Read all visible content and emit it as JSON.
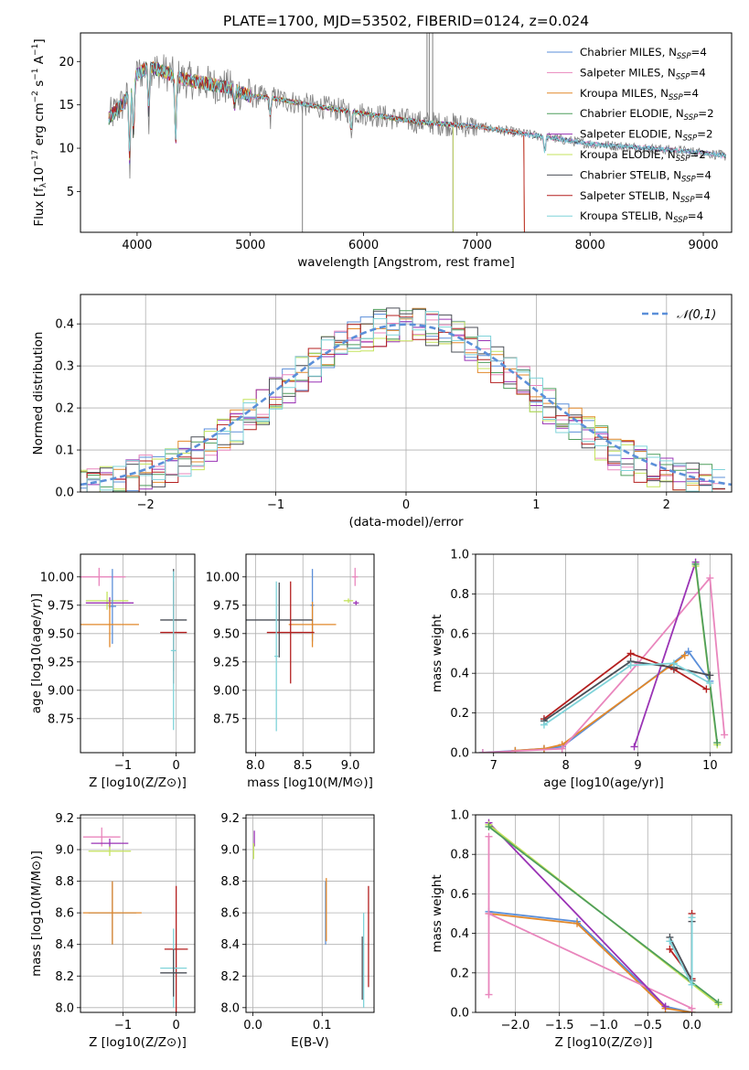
{
  "figure": {
    "title": "PLATE=1700, MJD=53502, FIBERID=0124, z=0.024"
  },
  "colors": {
    "chabrier_miles": "#5b8fd9",
    "salpeter_miles": "#e986bd",
    "kroupa_miles": "#e2882a",
    "chabrier_elodie": "#4f9e5c",
    "salpeter_elodie": "#9a33b5",
    "kroupa_elodie": "#c4e35c",
    "chabrier_stelib": "#4b4f57",
    "salpeter_stelib": "#b41f1f",
    "kroupa_stelib": "#7fd3d9",
    "data": "#808080",
    "normal_curve": "#5b8fd9"
  },
  "chart_data": [
    {
      "id": "spectrum",
      "type": "line",
      "xlabel": "wavelength [Angstrom, rest frame]",
      "ylabel": "Flux [f_λ 10^-17 erg cm^-2 s^-1 A^-1]",
      "xlim": [
        3500,
        9250
      ],
      "ylim": [
        0.3,
        23.3
      ],
      "xticks": [
        4000,
        5000,
        6000,
        7000,
        8000,
        9000
      ],
      "yticks": [
        5,
        10,
        15,
        20
      ],
      "grid": false,
      "legend_position": "top-right",
      "series": [
        {
          "name": "Chabrier MILES, N_SSP=4",
          "key": "chabrier_miles"
        },
        {
          "name": "Salpeter MILES, N_SSP=4",
          "key": "salpeter_miles"
        },
        {
          "name": "Kroupa MILES, N_SSP=4",
          "key": "kroupa_miles"
        },
        {
          "name": "Chabrier ELODIE, N_SSP=2",
          "key": "chabrier_elodie"
        },
        {
          "name": "Salpeter ELODIE, N_SSP=2",
          "key": "salpeter_elodie"
        },
        {
          "name": "Kroupa ELODIE, N_SSP=2",
          "key": "kroupa_elodie"
        },
        {
          "name": "Chabrier STELIB, N_SSP=4",
          "key": "chabrier_stelib"
        },
        {
          "name": "Salpeter STELIB, N_SSP=4",
          "key": "salpeter_stelib"
        },
        {
          "name": "Kroupa STELIB, N_SSP=4",
          "key": "kroupa_stelib"
        }
      ],
      "continuum": {
        "x": [
          3750,
          3900,
          4000,
          4100,
          4200,
          4400,
          4600,
          4800,
          5000,
          5200,
          5500,
          6000,
          6500,
          7000,
          7500,
          8000,
          8500,
          9000,
          9250
        ],
        "y": [
          13.5,
          15.5,
          18.5,
          19.5,
          19.0,
          18.0,
          17.5,
          17.0,
          16.0,
          15.8,
          15.0,
          14.0,
          13.0,
          12.5,
          11.5,
          10.5,
          10.0,
          9.5,
          9.0
        ]
      },
      "absorption_features": [
        {
          "x": 3934,
          "depth": 9.0
        },
        {
          "x": 3968,
          "depth": 7.0
        },
        {
          "x": 4102,
          "depth": 6.0
        },
        {
          "x": 4340,
          "depth": 8.5
        },
        {
          "x": 4861,
          "depth": 2.0
        },
        {
          "x": 5175,
          "depth": 2.5
        },
        {
          "x": 5890,
          "depth": 2.5
        },
        {
          "x": 7600,
          "depth": 2.0
        }
      ]
    },
    {
      "id": "residuals",
      "type": "line",
      "xlabel": "(data-model)/error",
      "ylabel": "Normed distribution",
      "xlim": [
        -2.5,
        2.5
      ],
      "ylim": [
        0.0,
        0.47
      ],
      "xticks": [
        -2,
        -1,
        0,
        1,
        2
      ],
      "yticks": [
        0.0,
        0.1,
        0.2,
        0.3,
        0.4
      ],
      "grid": true,
      "legend_position": "top-right",
      "legend_label": "𝒩(0,1)"
    },
    {
      "id": "age_vs_z",
      "type": "scatter",
      "xlabel": "Z [log10(Z/Z⊙)]",
      "ylabel": "age  [log10(age/yr)]",
      "xlim": [
        -1.8,
        0.35
      ],
      "ylim": [
        8.45,
        10.2
      ],
      "xticks": [
        -1,
        0
      ],
      "yticks": [
        8.75,
        9.0,
        9.25,
        9.5,
        9.75,
        10.0
      ],
      "grid": true,
      "points": [
        {
          "key": "salpeter_miles",
          "x": -1.45,
          "y": 10.0,
          "xerr": 0.5,
          "yerr": 0.08
        },
        {
          "key": "kroupa_elodie",
          "x": -1.3,
          "y": 9.79,
          "xerr": 0.4,
          "yerr": 0.08
        },
        {
          "key": "salpeter_elodie",
          "x": -1.25,
          "y": 9.77,
          "xerr": 0.45,
          "yerr": 0.05
        },
        {
          "key": "chabrier_miles",
          "x": -1.2,
          "y": 9.74,
          "xerr": 0.07,
          "yerr": 0.33
        },
        {
          "key": "kroupa_miles",
          "x": -1.25,
          "y": 9.58,
          "xerr": 0.55,
          "yerr": 0.2
        },
        {
          "key": "chabrier_stelib",
          "x": -0.05,
          "y": 9.62,
          "xerr": 0.25,
          "yerr": 0.45
        },
        {
          "key": "salpeter_stelib",
          "x": -0.05,
          "y": 9.51,
          "xerr": 0.25,
          "yerr": 0.45
        },
        {
          "key": "kroupa_stelib",
          "x": -0.05,
          "y": 9.35,
          "xerr": 0.05,
          "yerr": 0.7
        }
      ]
    },
    {
      "id": "age_vs_mass",
      "type": "scatter",
      "xlabel": "mass [log10(M/M⊙)]",
      "ylabel": "",
      "xlim": [
        7.9,
        9.25
      ],
      "ylim": [
        8.45,
        10.2
      ],
      "xticks": [
        8.0,
        8.5,
        9.0
      ],
      "yticks": [
        8.75,
        9.0,
        9.25,
        9.5,
        9.75,
        10.0
      ],
      "grid": true,
      "points": [
        {
          "key": "salpeter_miles",
          "x": 9.05,
          "y": 10.0,
          "xerr": 0.03,
          "yerr": 0.08
        },
        {
          "key": "kroupa_elodie",
          "x": 8.98,
          "y": 9.79,
          "xerr": 0.05,
          "yerr": 0.02
        },
        {
          "key": "salpeter_elodie",
          "x": 9.06,
          "y": 9.77,
          "xerr": 0.03,
          "yerr": 0.02
        },
        {
          "key": "chabrier_miles",
          "x": 8.6,
          "y": 9.75,
          "xerr": 0.02,
          "yerr": 0.32
        },
        {
          "key": "kroupa_miles",
          "x": 8.6,
          "y": 9.58,
          "xerr": 0.25,
          "yerr": 0.2
        },
        {
          "key": "chabrier_stelib",
          "x": 8.25,
          "y": 9.62,
          "xerr": 0.35,
          "yerr": 0.33
        },
        {
          "key": "salpeter_stelib",
          "x": 8.37,
          "y": 9.51,
          "xerr": 0.25,
          "yerr": 0.45
        },
        {
          "key": "kroupa_stelib",
          "x": 8.22,
          "y": 9.3,
          "xerr": 0.02,
          "yerr": 0.66
        }
      ]
    },
    {
      "id": "massweight_vs_age",
      "type": "line",
      "xlabel": "age  [log10(age/yr)]",
      "ylabel": "mass weight",
      "xlim": [
        6.75,
        10.3
      ],
      "ylim": [
        0.0,
        1.0
      ],
      "xticks": [
        7,
        8,
        9,
        10
      ],
      "yticks": [
        0.0,
        0.2,
        0.4,
        0.6,
        0.8,
        1.0
      ],
      "grid": true,
      "series": [
        {
          "key": "chabrier_miles",
          "x": [
            6.85,
            7.3,
            7.7,
            7.95,
            9.7,
            10.0
          ],
          "y": [
            0.0,
            0.01,
            0.02,
            0.03,
            0.51,
            0.36
          ]
        },
        {
          "key": "kroupa_miles",
          "x": [
            7.3,
            7.7,
            7.95,
            9.65
          ],
          "y": [
            0.01,
            0.02,
            0.04,
            0.49
          ]
        },
        {
          "key": "salpeter_miles",
          "x": [
            6.85,
            7.95,
            9.0,
            10.0,
            10.2
          ],
          "y": [
            0.0,
            0.02,
            0.45,
            0.88,
            0.09
          ]
        },
        {
          "key": "salpeter_elodie",
          "x": [
            8.95,
            9.8
          ],
          "y": [
            0.03,
            0.96
          ]
        },
        {
          "key": "kroupa_elodie",
          "x": [
            9.8,
            10.1
          ],
          "y": [
            0.94,
            0.04
          ]
        },
        {
          "key": "chabrier_elodie",
          "x": [
            9.8,
            10.1
          ],
          "y": [
            0.95,
            0.05
          ]
        },
        {
          "key": "salpeter_stelib",
          "x": [
            7.7,
            8.9,
            9.5,
            9.95
          ],
          "y": [
            0.17,
            0.5,
            0.42,
            0.32
          ]
        },
        {
          "key": "chabrier_stelib",
          "x": [
            7.7,
            8.9,
            9.5,
            10.0
          ],
          "y": [
            0.16,
            0.46,
            0.43,
            0.39
          ]
        },
        {
          "key": "kroupa_stelib",
          "x": [
            7.7,
            8.9,
            9.5,
            10.0
          ],
          "y": [
            0.14,
            0.44,
            0.45,
            0.35
          ]
        }
      ]
    },
    {
      "id": "mass_vs_z",
      "type": "scatter",
      "xlabel": "Z [log10(Z/Z⊙)]",
      "ylabel": "mass [log10(M/M⊙)]",
      "xlim": [
        -1.8,
        0.35
      ],
      "ylim": [
        7.97,
        9.22
      ],
      "xticks": [
        -1,
        0
      ],
      "yticks": [
        8.0,
        8.2,
        8.4,
        8.6,
        8.8,
        9.0,
        9.2
      ],
      "grid": true,
      "points": [
        {
          "key": "salpeter_miles",
          "x": -1.4,
          "y": 9.08,
          "xerr": 0.35,
          "yerr": 0.06
        },
        {
          "key": "salpeter_elodie",
          "x": -1.25,
          "y": 9.04,
          "xerr": 0.35,
          "yerr": 0.03
        },
        {
          "key": "kroupa_elodie",
          "x": -1.25,
          "y": 8.99,
          "xerr": 0.4,
          "yerr": 0.03
        },
        {
          "key": "chabrier_miles",
          "x": -1.2,
          "y": 8.6,
          "xerr": 0.45,
          "yerr": 0.2
        },
        {
          "key": "kroupa_miles",
          "x": -1.2,
          "y": 8.6,
          "xerr": 0.55,
          "yerr": 0.2
        },
        {
          "key": "salpeter_stelib",
          "x": 0.0,
          "y": 8.37,
          "xerr": 0.22,
          "yerr": 0.4
        },
        {
          "key": "kroupa_stelib",
          "x": -0.05,
          "y": 8.25,
          "xerr": 0.25,
          "yerr": 0.25
        },
        {
          "key": "chabrier_stelib",
          "x": -0.05,
          "y": 8.22,
          "xerr": 0.25,
          "yerr": 0.15
        }
      ]
    },
    {
      "id": "mass_vs_ebv",
      "type": "scatter",
      "xlabel": "E(B-V)",
      "ylabel": "",
      "xlim": [
        -0.01,
        0.175
      ],
      "ylim": [
        7.97,
        9.22
      ],
      "xticks": [
        0.0,
        0.1
      ],
      "yticks": [
        8.0,
        8.2,
        8.4,
        8.6,
        8.8,
        9.0,
        9.2
      ],
      "grid": true,
      "points": [
        {
          "key": "salpeter_elodie",
          "x": 0.002,
          "y": 9.07,
          "xerr": 0.0,
          "yerr": 0.05
        },
        {
          "key": "kroupa_elodie",
          "x": 0.001,
          "y": 8.99,
          "xerr": 0.0,
          "yerr": 0.05
        },
        {
          "key": "chabrier_miles",
          "x": 0.105,
          "y": 8.6,
          "xerr": 0.0,
          "yerr": 0.2
        },
        {
          "key": "kroupa_miles",
          "x": 0.106,
          "y": 8.62,
          "xerr": 0.0,
          "yerr": 0.2
        },
        {
          "key": "salpeter_stelib",
          "x": 0.167,
          "y": 8.45,
          "xerr": 0.0,
          "yerr": 0.32
        },
        {
          "key": "kroupa_stelib",
          "x": 0.16,
          "y": 8.3,
          "xerr": 0.0,
          "yerr": 0.3
        },
        {
          "key": "chabrier_stelib",
          "x": 0.158,
          "y": 8.25,
          "xerr": 0.0,
          "yerr": 0.2
        }
      ]
    },
    {
      "id": "massweight_vs_z",
      "type": "line",
      "xlabel": "Z [log10(Z/Z⊙)]",
      "ylabel": "mass weight",
      "xlim": [
        -2.45,
        0.45
      ],
      "ylim": [
        0.0,
        1.0
      ],
      "xticks": [
        -2.0,
        -1.5,
        -1.0,
        -0.5,
        0.0
      ],
      "yticks": [
        0.0,
        0.2,
        0.4,
        0.6,
        0.8,
        1.0
      ],
      "grid": true,
      "series": [
        {
          "key": "chabrier_miles",
          "x": [
            -2.3,
            -1.3,
            -0.3,
            0.0
          ],
          "y": [
            0.51,
            0.46,
            0.03,
            0.0
          ]
        },
        {
          "key": "kroupa_miles",
          "x": [
            -2.3,
            -1.3,
            -0.3,
            0.0
          ],
          "y": [
            0.5,
            0.45,
            0.02,
            0.0
          ]
        },
        {
          "key": "salpeter_miles",
          "x": [
            -2.3,
            -2.3,
            -2.3,
            0.0
          ],
          "y": [
            0.09,
            0.89,
            0.5,
            0.02
          ]
        },
        {
          "key": "salpeter_elodie",
          "x": [
            -2.3,
            -0.3
          ],
          "y": [
            0.96,
            0.03
          ]
        },
        {
          "key": "kroupa_elodie",
          "x": [
            -2.3,
            0.3
          ],
          "y": [
            0.95,
            0.04
          ]
        },
        {
          "key": "chabrier_elodie",
          "x": [
            -2.3,
            0.3
          ],
          "y": [
            0.94,
            0.05
          ]
        },
        {
          "key": "salpeter_stelib",
          "x": [
            -0.25,
            0.0,
            0.0
          ],
          "y": [
            0.32,
            0.17,
            0.5
          ]
        },
        {
          "key": "chabrier_stelib",
          "x": [
            -0.25,
            0.0,
            0.0
          ],
          "y": [
            0.38,
            0.16,
            0.46
          ]
        },
        {
          "key": "kroupa_stelib",
          "x": [
            -0.25,
            0.0,
            0.0
          ],
          "y": [
            0.36,
            0.14,
            0.48
          ]
        }
      ]
    }
  ]
}
